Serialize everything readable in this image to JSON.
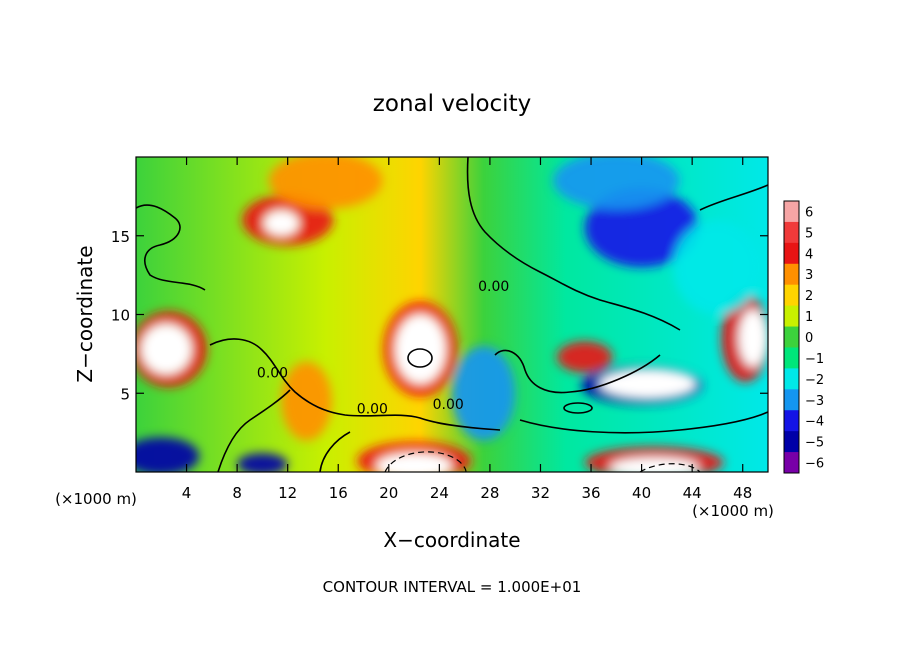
{
  "chart_data": {
    "type": "heatmap",
    "title": "zonal velocity",
    "xlabel": "X−coordinate",
    "ylabel": "Z−coordinate",
    "x_unit_left": "(×1000 m)",
    "x_unit_right": "(×1000 m)",
    "footer": "CONTOUR INTERVAL = 1.000E+01",
    "xlim": [
      0,
      50
    ],
    "ylim": [
      0,
      20
    ],
    "x_ticks": [
      4,
      8,
      12,
      16,
      20,
      24,
      28,
      32,
      36,
      40,
      44,
      48
    ],
    "y_ticks": [
      5,
      10,
      15
    ],
    "colorbar": {
      "levels": [
        6,
        5,
        4,
        3,
        2,
        1,
        0,
        -1,
        -2,
        -3,
        -4,
        -5,
        -6
      ],
      "labels": [
        "6",
        "5",
        "4",
        "3",
        "2",
        "1",
        "0",
        "−1",
        "−2",
        "−3",
        "−4",
        "−5",
        "−6"
      ],
      "colors": [
        "#f6a5a5",
        "#f03a3a",
        "#e81414",
        "#ff9000",
        "#ffd400",
        "#c8f000",
        "#3cd23c",
        "#00e67a",
        "#00e8e8",
        "#1496f0",
        "#1414e6",
        "#0000a8",
        "#7800a8"
      ]
    },
    "contour_labels": [
      {
        "text": "0.00",
        "x": 28.3,
        "y": 11.5
      },
      {
        "text": "0.00",
        "x": 10.8,
        "y": 6.0
      },
      {
        "text": "0.00",
        "x": 18.7,
        "y": 3.7
      },
      {
        "text": "0.00",
        "x": 24.7,
        "y": 4.0
      }
    ],
    "features": [
      {
        "type": "blob",
        "x": 12.0,
        "y": 16.0,
        "rx": 3.6,
        "ry": 1.6,
        "value": 4
      },
      {
        "type": "blob",
        "x": 11.5,
        "y": 15.8,
        "rx": 1.4,
        "ry": 0.8,
        "value": 6
      },
      {
        "type": "blob",
        "x": 15.0,
        "y": 18.5,
        "rx": 4.5,
        "ry": 1.8,
        "value": 3
      },
      {
        "type": "blob",
        "x": 22.5,
        "y": 7.8,
        "rx": 2.9,
        "ry": 3.0,
        "value": 4
      },
      {
        "type": "blob",
        "x": 22.5,
        "y": 7.8,
        "rx": 2.0,
        "ry": 2.2,
        "value": 6
      },
      {
        "type": "blob",
        "x": 2.6,
        "y": 7.8,
        "rx": 3.0,
        "ry": 2.4,
        "value": 4
      },
      {
        "type": "blob",
        "x": 2.4,
        "y": 7.8,
        "rx": 2.0,
        "ry": 1.6,
        "value": 6
      },
      {
        "type": "blob",
        "x": 48.2,
        "y": 8.5,
        "rx": 1.9,
        "ry": 2.8,
        "value": 4
      },
      {
        "type": "blob",
        "x": 48.8,
        "y": 8.5,
        "rx": 1.1,
        "ry": 1.8,
        "value": 6
      },
      {
        "type": "blob",
        "x": 40.0,
        "y": 5.5,
        "rx": 4.8,
        "ry": 1.2,
        "value": -5
      },
      {
        "type": "blob",
        "x": 40.5,
        "y": 5.6,
        "rx": 3.8,
        "ry": 0.9,
        "value": 6
      },
      {
        "type": "blob",
        "x": 35.5,
        "y": 7.3,
        "rx": 2.2,
        "ry": 1.0,
        "value": 4
      },
      {
        "type": "blob",
        "x": 40.0,
        "y": 15.5,
        "rx": 4.5,
        "ry": 2.5,
        "value": -4
      },
      {
        "type": "blob",
        "x": 38.0,
        "y": 18.5,
        "rx": 5.0,
        "ry": 1.8,
        "value": -3
      },
      {
        "type": "blob",
        "x": 46.0,
        "y": 13.0,
        "rx": 3.5,
        "ry": 3.0,
        "value": -2
      },
      {
        "type": "blob",
        "x": 22.0,
        "y": 0.7,
        "rx": 4.5,
        "ry": 1.2,
        "value": 4
      },
      {
        "type": "blob",
        "x": 22.0,
        "y": 0.4,
        "rx": 3.0,
        "ry": 0.8,
        "value": 6
      },
      {
        "type": "blob",
        "x": 41.0,
        "y": 0.6,
        "rx": 5.5,
        "ry": 1.0,
        "value": 4
      },
      {
        "type": "blob",
        "x": 41.0,
        "y": 0.3,
        "rx": 3.5,
        "ry": 0.6,
        "value": 6
      },
      {
        "type": "blob",
        "x": 2.0,
        "y": 1.0,
        "rx": 3.0,
        "ry": 1.2,
        "value": -5
      },
      {
        "type": "blob",
        "x": 10.0,
        "y": 0.5,
        "rx": 2.0,
        "ry": 0.7,
        "value": -5
      },
      {
        "type": "blob",
        "x": 27.5,
        "y": 5.0,
        "rx": 2.5,
        "ry": 3.0,
        "value": -3
      },
      {
        "type": "blob",
        "x": 13.5,
        "y": 4.5,
        "rx": 2.0,
        "ry": 2.5,
        "value": 3
      }
    ]
  }
}
